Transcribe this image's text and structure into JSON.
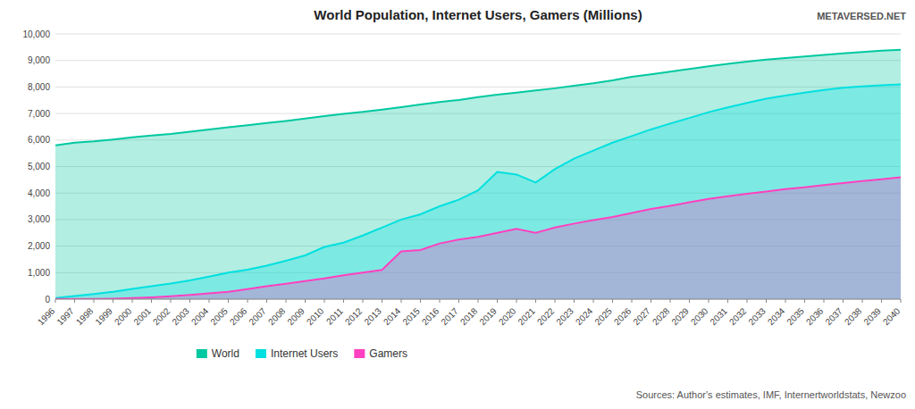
{
  "chart_data": {
    "type": "area",
    "title": "World Population, Internet Users, Gamers (Millions)",
    "annotations": [
      "METAVERSED.NET",
      "Sources: Author's estimates, IMF, Internertworldstats, Newzoo"
    ],
    "x": [
      1996,
      1997,
      1998,
      1999,
      2000,
      2001,
      2002,
      2003,
      2004,
      2005,
      2006,
      2007,
      2008,
      2009,
      2010,
      2011,
      2012,
      2013,
      2014,
      2015,
      2016,
      2017,
      2018,
      2019,
      2020,
      2021,
      2022,
      2023,
      2024,
      2025,
      2026,
      2027,
      2028,
      2029,
      2030,
      2031,
      2032,
      2033,
      2034,
      2035,
      2036,
      2037,
      2038,
      2039,
      2040
    ],
    "series": [
      {
        "name": "World",
        "color": "#00c8a0",
        "values": [
          5800,
          5900,
          5950,
          6020,
          6100,
          6170,
          6230,
          6310,
          6400,
          6480,
          6560,
          6640,
          6720,
          6810,
          6900,
          6990,
          7060,
          7150,
          7240,
          7340,
          7430,
          7510,
          7620,
          7710,
          7790,
          7870,
          7950,
          8050,
          8140,
          8250,
          8380,
          8480,
          8580,
          8680,
          8780,
          8870,
          8960,
          9030,
          9090,
          9150,
          9210,
          9270,
          9320,
          9370,
          9400
        ]
      },
      {
        "name": "Internet Users",
        "color": "#00e0e0",
        "values": [
          40,
          120,
          190,
          280,
          390,
          490,
          590,
          710,
          850,
          1000,
          1110,
          1260,
          1450,
          1650,
          1970,
          2130,
          2400,
          2700,
          3000,
          3200,
          3500,
          3750,
          4100,
          4800,
          4700,
          4400,
          4900,
          5300,
          5600,
          5900,
          6150,
          6400,
          6620,
          6830,
          7050,
          7230,
          7400,
          7560,
          7680,
          7790,
          7890,
          7970,
          8020,
          8060,
          8100
        ]
      },
      {
        "name": "Gamers",
        "color": "#ff40c0",
        "values": [
          5,
          8,
          12,
          20,
          40,
          70,
          110,
          160,
          220,
          280,
          380,
          490,
          580,
          680,
          780,
          900,
          1000,
          1100,
          1800,
          1850,
          2100,
          2250,
          2350,
          2500,
          2650,
          2500,
          2700,
          2850,
          2980,
          3100,
          3250,
          3400,
          3520,
          3650,
          3780,
          3880,
          3970,
          4060,
          4150,
          4220,
          4300,
          4380,
          4450,
          4520,
          4600
        ]
      }
    ],
    "xlim": [
      1996,
      2040
    ],
    "xticks": [
      1996,
      1997,
      1998,
      1999,
      2000,
      2001,
      2002,
      2003,
      2004,
      2005,
      2006,
      2007,
      2008,
      2009,
      2010,
      2011,
      2012,
      2013,
      2014,
      2015,
      2016,
      2017,
      2018,
      2019,
      2020,
      2021,
      2022,
      2023,
      2024,
      2025,
      2026,
      2027,
      2028,
      2029,
      2030,
      2031,
      2032,
      2033,
      2034,
      2035,
      2036,
      2037,
      2038,
      2039,
      2040
    ],
    "ylim": [
      0,
      10000
    ],
    "yticks": [
      0,
      {
        "value": 1000,
        "label": "1,000"
      },
      {
        "value": 2000,
        "label": "2,000"
      },
      {
        "value": 3000,
        "label": "3,000"
      },
      {
        "value": 4000,
        "label": "4,000"
      },
      {
        "value": 5000,
        "label": "5,000"
      },
      {
        "value": 6000,
        "label": "6,000"
      },
      {
        "value": 7000,
        "label": "7,000"
      },
      {
        "value": 8000,
        "label": "8,000"
      },
      {
        "value": 9000,
        "label": "9,000"
      },
      {
        "value": 10000,
        "label": "10,000"
      }
    ],
    "grid": true,
    "legend": "bottom"
  }
}
